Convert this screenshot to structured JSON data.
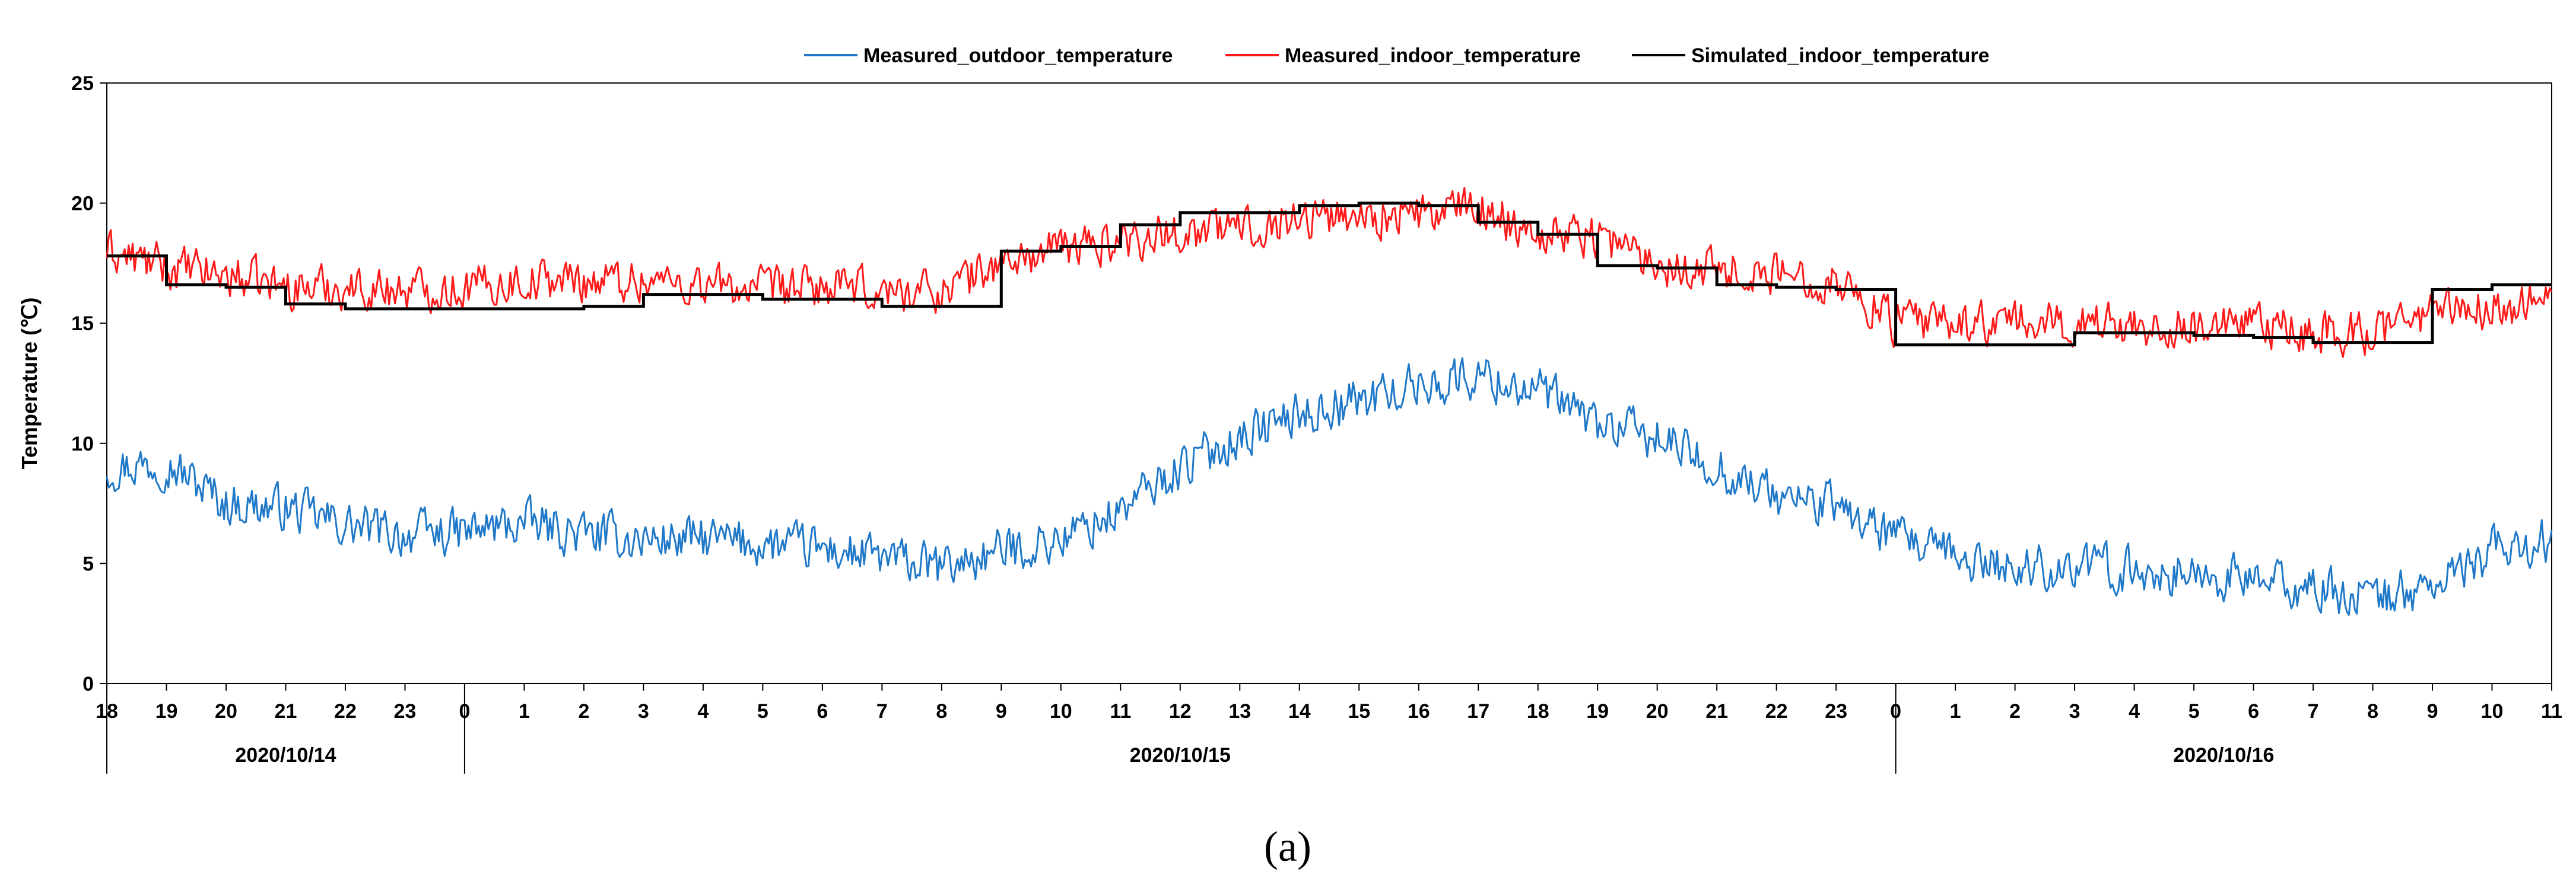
{
  "chart_data": {
    "type": "line",
    "ylabel": "Temperature (℃)",
    "ylim": [
      0,
      25
    ],
    "yticks": [
      "0",
      "5",
      "10",
      "15",
      "20",
      "25"
    ],
    "x_hours": {
      "start_hour": 18,
      "end_hour": 59,
      "tick_labels": [
        "18",
        "19",
        "20",
        "21",
        "22",
        "23",
        "0",
        "1",
        "2",
        "3",
        "4",
        "5",
        "6",
        "7",
        "8",
        "9",
        "10",
        "11",
        "12",
        "13",
        "14",
        "15",
        "16",
        "17",
        "18",
        "19",
        "20",
        "21",
        "22",
        "23",
        "0",
        "1",
        "2",
        "3",
        "4",
        "5",
        "6",
        "7",
        "8",
        "9",
        "10",
        "11"
      ]
    },
    "dates": [
      {
        "label": "2020/10/14",
        "from_hour": 18,
        "to_hour": 24
      },
      {
        "label": "2020/10/15",
        "from_hour": 24,
        "to_hour": 48
      },
      {
        "label": "2020/10/16",
        "from_hour": 48,
        "to_hour": 59
      }
    ],
    "legend": [
      {
        "label": "Measured_outdoor_temperature",
        "color": "#1f78c8"
      },
      {
        "label": "Measured_indoor_temperature",
        "color": "#ff1a1a"
      },
      {
        "label": "Simulated_indoor_temperature",
        "color": "#000000"
      }
    ],
    "series": [
      {
        "name": "Measured_outdoor_temperature",
        "color": "#1f78c8",
        "trend_points": [
          [
            18,
            9.0
          ],
          [
            19,
            9.2
          ],
          [
            20,
            7.5
          ],
          [
            21,
            7.3
          ],
          [
            22,
            6.6
          ],
          [
            23,
            6.2
          ],
          [
            24,
            6.3
          ],
          [
            25,
            6.7
          ],
          [
            26,
            6.2
          ],
          [
            27,
            6.0
          ],
          [
            28,
            6.0
          ],
          [
            29,
            5.8
          ],
          [
            30,
            5.6
          ],
          [
            31,
            5.2
          ],
          [
            32,
            4.8
          ],
          [
            33,
            5.5
          ],
          [
            34,
            6.0
          ],
          [
            35,
            7.2
          ],
          [
            36,
            9.0
          ],
          [
            37,
            10.3
          ],
          [
            38,
            11.2
          ],
          [
            39,
            11.8
          ],
          [
            40,
            12.4
          ],
          [
            41,
            12.8
          ],
          [
            42,
            12.2
          ],
          [
            43,
            10.8
          ],
          [
            44,
            10.2
          ],
          [
            45,
            9.0
          ],
          [
            46,
            7.8
          ],
          [
            47,
            7.4
          ],
          [
            48,
            6.0
          ],
          [
            49,
            5.2
          ],
          [
            50,
            4.8
          ],
          [
            51,
            4.9
          ],
          [
            52,
            4.7
          ],
          [
            53,
            4.5
          ],
          [
            54,
            4.3
          ],
          [
            55,
            3.9
          ],
          [
            56,
            3.6
          ],
          [
            57,
            4.0
          ],
          [
            58,
            5.5
          ],
          [
            59,
            6.0
          ]
        ],
        "noise": 1.3
      },
      {
        "name": "Measured_indoor_temperature",
        "color": "#ff1a1a",
        "trend_points": [
          [
            18,
            18.0
          ],
          [
            19,
            17.3
          ],
          [
            20,
            17.0
          ],
          [
            21,
            16.5
          ],
          [
            22,
            16.5
          ],
          [
            23,
            16.4
          ],
          [
            24,
            16.5
          ],
          [
            25,
            16.8
          ],
          [
            26,
            16.8
          ],
          [
            27,
            16.8
          ],
          [
            28,
            16.6
          ],
          [
            29,
            16.4
          ],
          [
            30,
            16.5
          ],
          [
            31,
            16.3
          ],
          [
            32,
            16.4
          ],
          [
            33,
            17.5
          ],
          [
            34,
            18.1
          ],
          [
            35,
            18.5
          ],
          [
            36,
            18.8
          ],
          [
            37,
            19.0
          ],
          [
            38,
            19.4
          ],
          [
            39,
            19.5
          ],
          [
            40,
            19.5
          ],
          [
            41,
            19.8
          ],
          [
            42,
            18.8
          ],
          [
            43,
            18.7
          ],
          [
            44,
            17.5
          ],
          [
            45,
            17.3
          ],
          [
            46,
            17.0
          ],
          [
            47,
            16.8
          ],
          [
            48,
            15.0
          ],
          [
            49,
            15.0
          ],
          [
            50,
            15.0
          ],
          [
            51,
            15.0
          ],
          [
            52,
            15.0
          ],
          [
            53,
            14.8
          ],
          [
            54,
            14.8
          ],
          [
            55,
            14.6
          ],
          [
            56,
            14.6
          ],
          [
            57,
            15.5
          ],
          [
            58,
            15.6
          ],
          [
            59,
            16.0
          ]
        ],
        "noise": 1.25
      },
      {
        "name": "Simulated_indoor_temperature",
        "color": "#000000",
        "steps": [
          [
            18,
            17.8
          ],
          [
            19,
            16.6
          ],
          [
            20,
            16.5
          ],
          [
            21,
            15.8
          ],
          [
            22,
            15.6
          ],
          [
            23,
            15.6
          ],
          [
            24,
            15.6
          ],
          [
            25,
            15.6
          ],
          [
            26,
            15.7
          ],
          [
            27,
            16.2
          ],
          [
            28,
            16.2
          ],
          [
            29,
            16.0
          ],
          [
            30,
            16.0
          ],
          [
            31,
            15.7
          ],
          [
            32,
            15.7
          ],
          [
            33,
            18.0
          ],
          [
            34,
            18.2
          ],
          [
            35,
            19.1
          ],
          [
            36,
            19.6
          ],
          [
            37,
            19.6
          ],
          [
            38,
            19.9
          ],
          [
            39,
            20.0
          ],
          [
            40,
            19.9
          ],
          [
            41,
            19.2
          ],
          [
            42,
            18.7
          ],
          [
            43,
            17.4
          ],
          [
            44,
            17.3
          ],
          [
            45,
            16.6
          ],
          [
            46,
            16.5
          ],
          [
            47,
            16.4
          ],
          [
            48,
            14.1
          ],
          [
            49,
            14.1
          ],
          [
            50,
            14.1
          ],
          [
            51,
            14.6
          ],
          [
            52,
            14.6
          ],
          [
            53,
            14.5
          ],
          [
            54,
            14.4
          ],
          [
            55,
            14.2
          ],
          [
            56,
            14.2
          ],
          [
            57,
            16.4
          ],
          [
            58,
            16.6
          ],
          [
            59,
            16.6
          ]
        ]
      }
    ]
  },
  "caption": "(a)"
}
